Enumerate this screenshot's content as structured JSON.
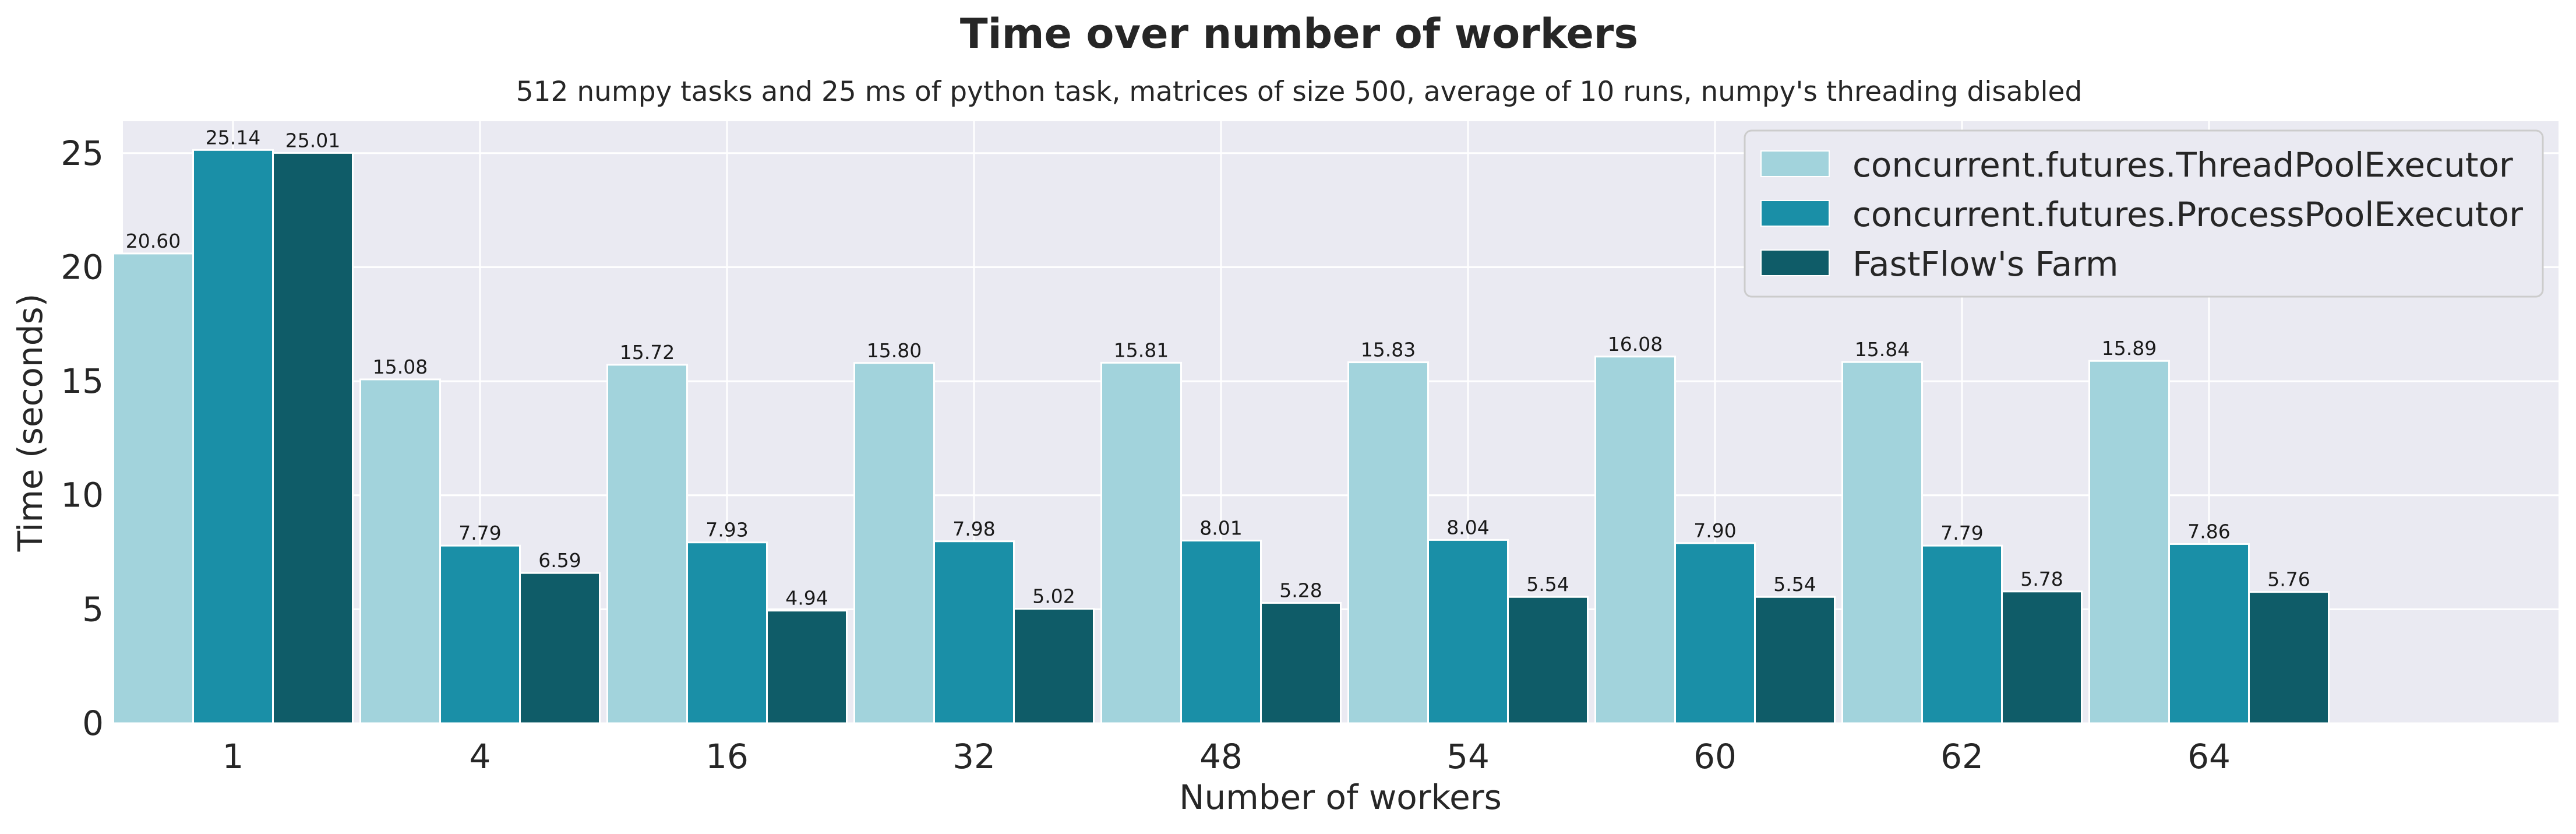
{
  "chart_data": {
    "type": "bar",
    "title": "Time over number of workers",
    "subtitle": "512 numpy tasks and 25 ms of python task, matrices of size 500, average of 10 runs, numpy's threading disabled",
    "xlabel": "Number of workers",
    "ylabel": "Time (seconds)",
    "categories": [
      "1",
      "4",
      "16",
      "32",
      "48",
      "54",
      "60",
      "62",
      "64"
    ],
    "ylim": [
      0,
      26.4
    ],
    "yticks": [
      0,
      5,
      10,
      15,
      20,
      25
    ],
    "grid": true,
    "legend_position": "top-right",
    "series": [
      {
        "name": "concurrent.futures.ThreadPoolExecutor",
        "color": "#a2d3dc",
        "values": [
          20.6,
          15.08,
          15.72,
          15.8,
          15.81,
          15.83,
          16.08,
          15.84,
          15.89
        ]
      },
      {
        "name": "concurrent.futures.ProcessPoolExecutor",
        "color": "#1a8fa7",
        "values": [
          25.14,
          7.79,
          7.93,
          7.98,
          8.01,
          8.04,
          7.9,
          7.79,
          7.86
        ]
      },
      {
        "name": "FastFlow's Farm",
        "color": "#0f5c68",
        "values": [
          25.01,
          6.59,
          4.94,
          5.02,
          5.28,
          5.54,
          5.54,
          5.78,
          5.76
        ]
      }
    ]
  }
}
